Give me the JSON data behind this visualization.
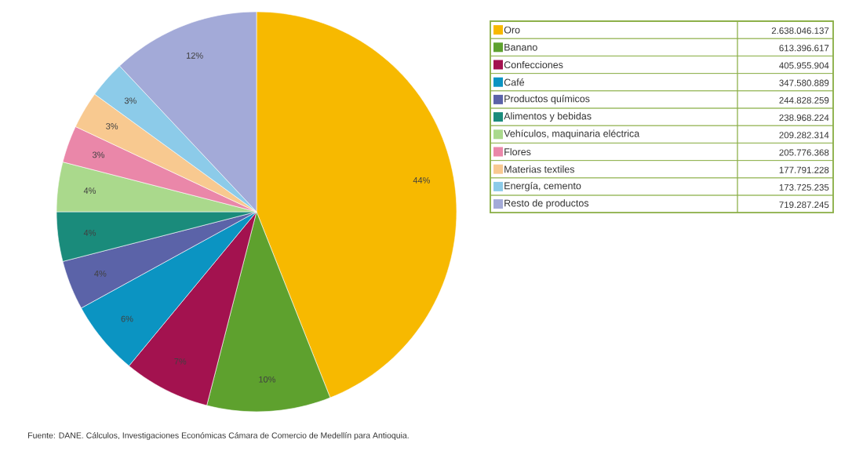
{
  "chart_data": {
    "type": "pie",
    "categories": [
      "Oro",
      "Banano",
      "Confecciones",
      "Café",
      "Productos químicos",
      "Alimentos y bebidas",
      "Vehículos, maquinaria eléctrica",
      "Flores",
      "Materias textiles",
      "Energía, cemento",
      "Resto de productos"
    ],
    "values": [
      44,
      10,
      7,
      6,
      4,
      4,
      4,
      3,
      3,
      3,
      12
    ],
    "colors": [
      "#f7b900",
      "#5ea12e",
      "#a3124f",
      "#0b94c2",
      "#5b63a8",
      "#1a8b7b",
      "#aad98c",
      "#ea87a9",
      "#f8c990",
      "#8ccbe9",
      "#a3aad8"
    ],
    "value_labels": [
      "44%",
      "10%",
      "7%",
      "6%",
      "4%",
      "4%",
      "4%",
      "3%",
      "3%",
      "3%",
      "12%"
    ],
    "legend": "right",
    "annotations": [
      "Fuente: DANE. Cálculos, Investigaciones Económicas Cámara de Comercio de Medellín para Antioquia.",
      "2.638.046.137",
      "613.396.617",
      "405.955.904",
      "347.580.889",
      "244.828.259",
      "238.968.224",
      "209.282.314",
      "205.776.368",
      "177.791.228",
      "173.725.235",
      "719.287.245"
    ]
  }
}
